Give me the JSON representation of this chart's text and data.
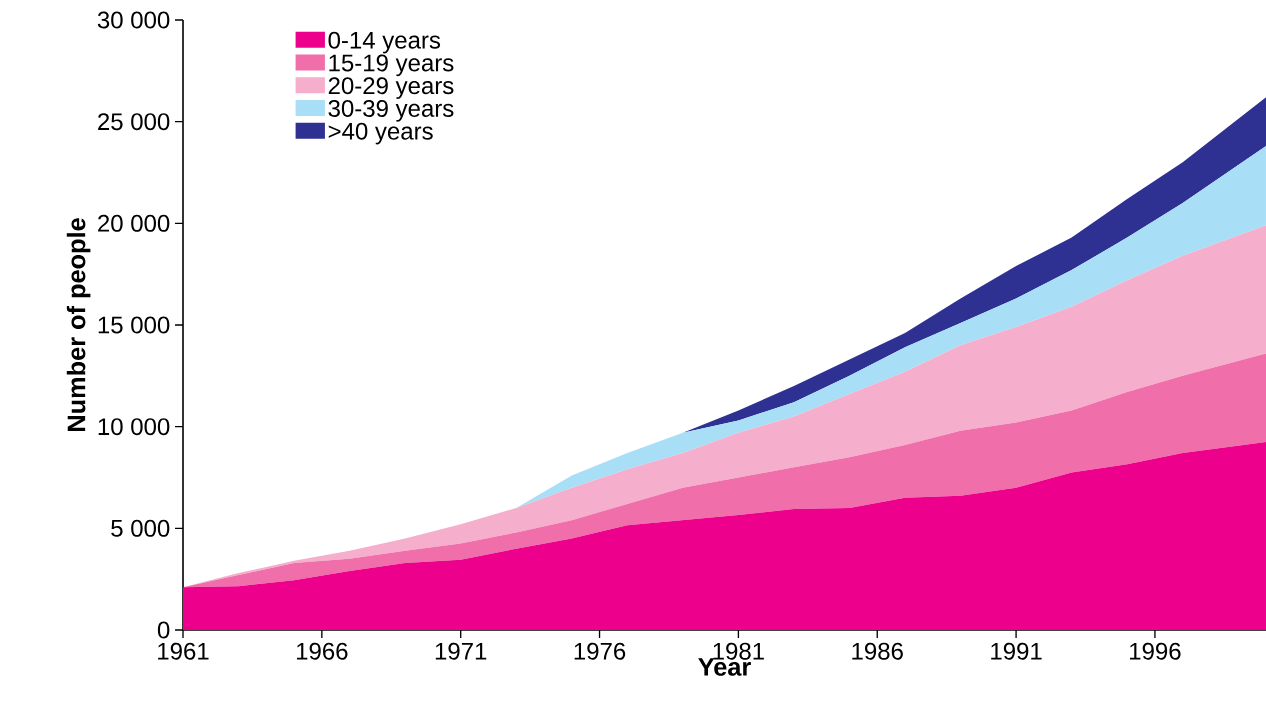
{
  "chart_data": {
    "type": "area",
    "stacked": true,
    "xlabel": "Year",
    "ylabel": "Number of people",
    "x": [
      1961,
      1963,
      1965,
      1967,
      1969,
      1971,
      1973,
      1975,
      1977,
      1979,
      1981,
      1983,
      1985,
      1987,
      1989,
      1991,
      1993,
      1995,
      1997,
      2000
    ],
    "series": [
      {
        "name": "0-14 years",
        "color": "#ec008c",
        "values": [
          2100,
          2150,
          2450,
          2900,
          3300,
          3450,
          4000,
          4500,
          5150,
          5400,
          5650,
          5950,
          6000,
          6500,
          6600,
          7000,
          7750,
          8150,
          8700,
          9250
        ]
      },
      {
        "name": "15-19 years",
        "color": "#f06ea9",
        "values": [
          0,
          550,
          850,
          600,
          600,
          800,
          800,
          900,
          1050,
          1600,
          1850,
          2050,
          2500,
          2600,
          3200,
          3200,
          3050,
          3550,
          3800,
          4350
        ]
      },
      {
        "name": "20-29 years",
        "color": "#f5aecb",
        "values": [
          0,
          100,
          100,
          400,
          600,
          950,
          1200,
          1600,
          1700,
          1700,
          2200,
          2500,
          3100,
          3600,
          4200,
          4700,
          5100,
          5500,
          5900,
          6300
        ]
      },
      {
        "name": "30-39 years",
        "color": "#a8dff7",
        "values": [
          0,
          0,
          0,
          0,
          0,
          0,
          0,
          600,
          800,
          1000,
          600,
          700,
          900,
          1200,
          1100,
          1400,
          1800,
          2100,
          2600,
          3900
        ]
      },
      {
        "name": ">40 years",
        "color": "#2e3192",
        "values": [
          0,
          0,
          0,
          0,
          0,
          0,
          0,
          0,
          0,
          0,
          500,
          800,
          800,
          700,
          1200,
          1600,
          1600,
          1900,
          2000,
          2400
        ]
      }
    ],
    "xlim": [
      1961,
      2000
    ],
    "xticks": [
      1961,
      1966,
      1971,
      1976,
      1981,
      1986,
      1991,
      1996
    ],
    "ylim": [
      0,
      30000
    ],
    "yticks": [
      {
        "value": 0,
        "label": "0"
      },
      {
        "value": 5000,
        "label": "5 000"
      },
      {
        "value": 10000,
        "label": "10 000"
      },
      {
        "value": 15000,
        "label": "15 000"
      },
      {
        "value": 20000,
        "label": "20 000"
      },
      {
        "value": 25000,
        "label": "25 000"
      },
      {
        "value": 30000,
        "label": "30 000"
      }
    ],
    "grid": false,
    "legend": "top left"
  }
}
